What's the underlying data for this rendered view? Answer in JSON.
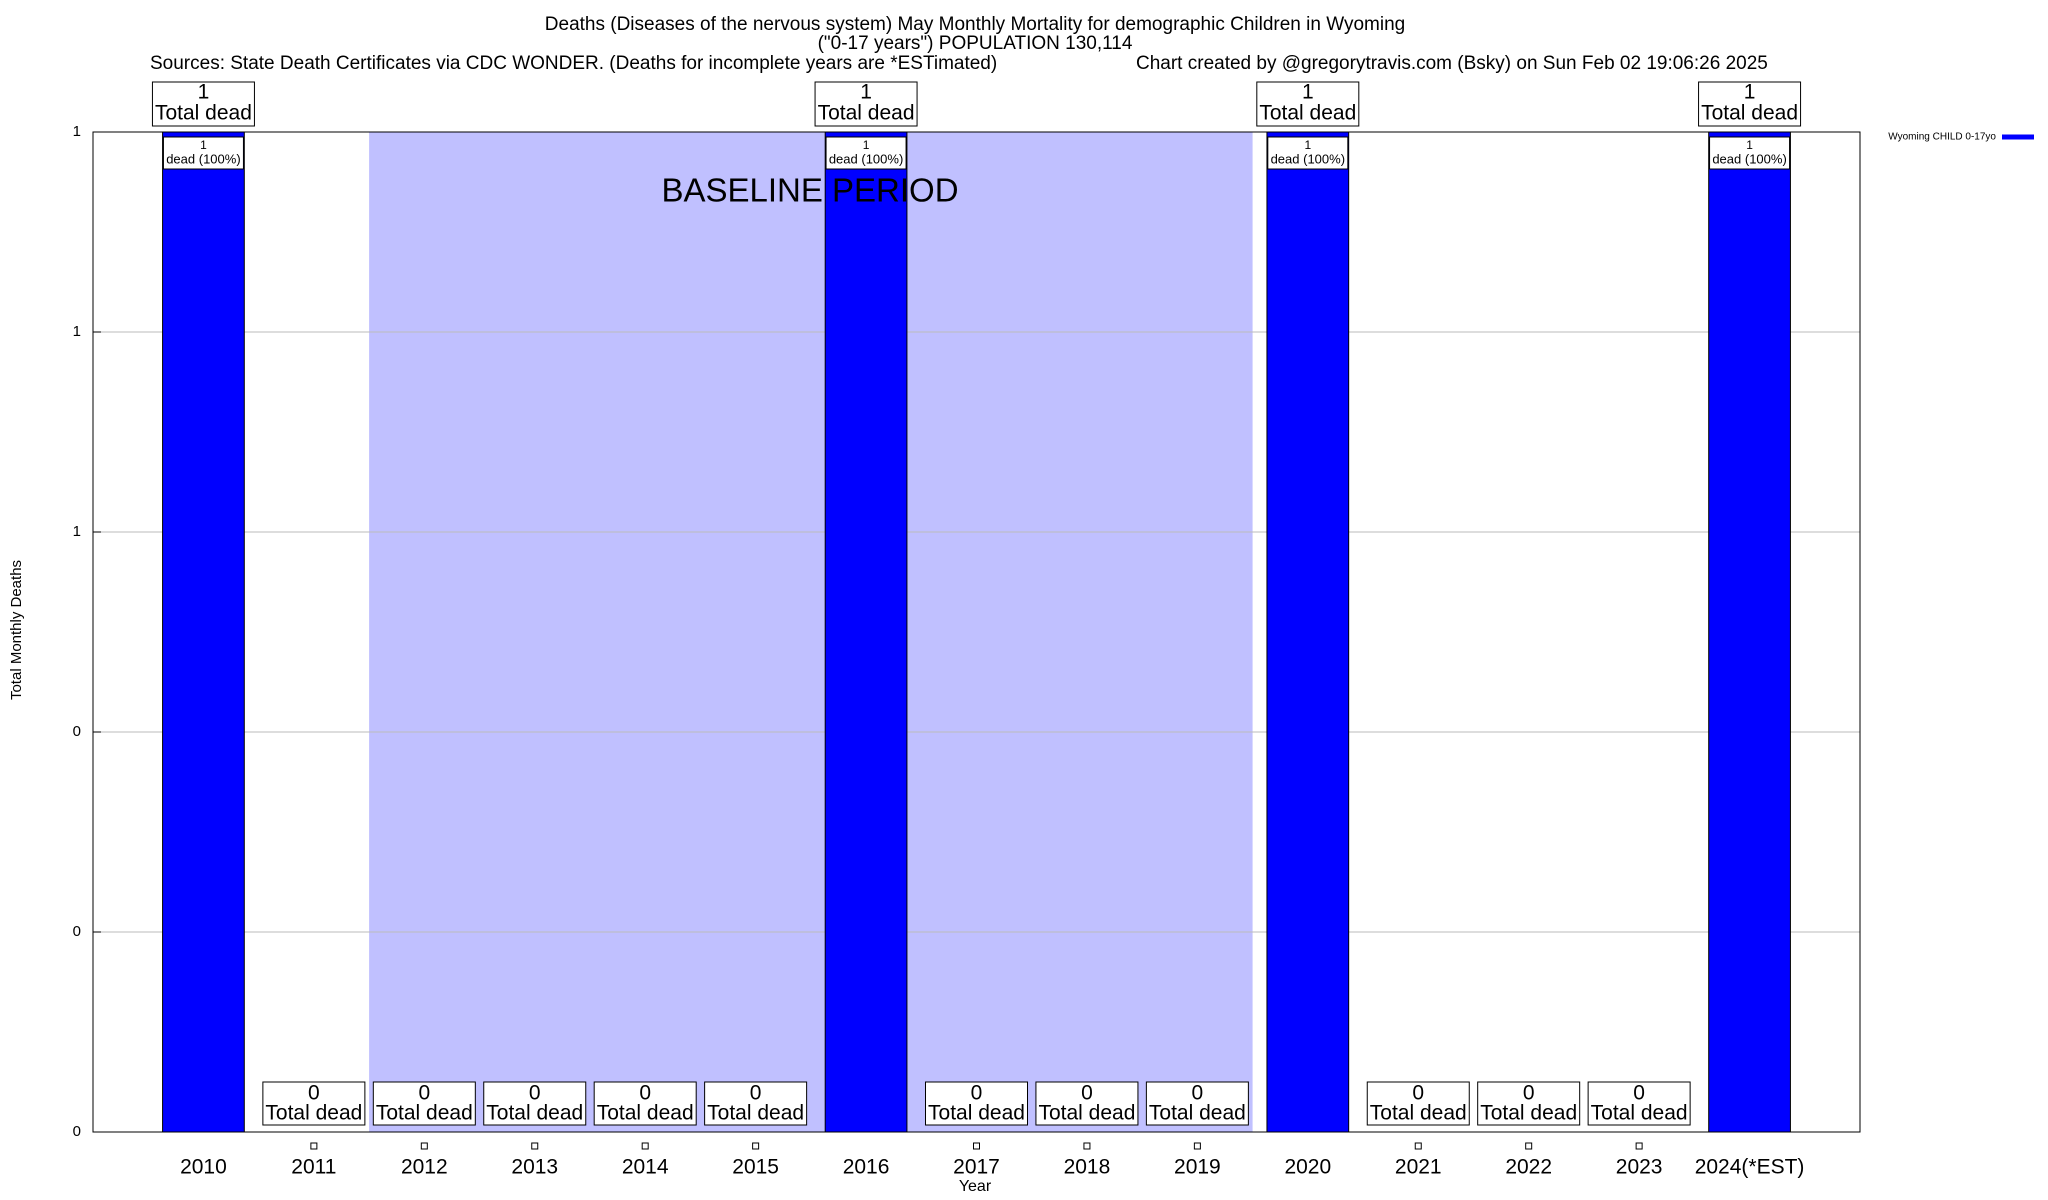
{
  "chart_data": {
    "type": "bar",
    "title": "Deaths (Diseases of the nervous system) May Monthly Mortality for demographic Children in Wyoming",
    "subtitle": "(\"0-17 years\") POPULATION 130,114",
    "source": "Sources: State Death Certificates via CDC WONDER. (Deaths for incomplete years are *ESTimated)",
    "credit": "Chart created by @gregorytravis.com (Bsky) on Sun Feb 02 19:06:26 2025",
    "x_label": "Year",
    "y_label": "Total Monthly Deaths",
    "categories": [
      "2010",
      "2011",
      "2012",
      "2013",
      "2014",
      "2015",
      "2016",
      "2017",
      "2018",
      "2019",
      "2020",
      "2021",
      "2022",
      "2023",
      "2024(*EST)"
    ],
    "series": [
      {
        "name": "Wyoming CHILD 0-17yo",
        "color": "#0000ff",
        "values": [
          1,
          0,
          0,
          0,
          0,
          0,
          1,
          0,
          0,
          0,
          1,
          0,
          0,
          0,
          1
        ],
        "share_labels": [
          "dead (100%)",
          null,
          null,
          null,
          null,
          null,
          "dead (100%)",
          null,
          null,
          null,
          "dead (100%)",
          null,
          null,
          null,
          "dead (100%)"
        ]
      }
    ],
    "total_label": "Total dead",
    "ylim": [
      0,
      1
    ],
    "yticks": [
      0,
      {
        "value": 0.2,
        "label": "0"
      },
      {
        "value": 0.4,
        "label": "0"
      },
      {
        "value": 0.6,
        "label": "1"
      },
      {
        "value": 0.8,
        "label": "1"
      },
      1
    ],
    "grid": true,
    "legend": "top-right",
    "baseline": {
      "label": "BASELINE PERIOD",
      "start": "2012",
      "end": "2019",
      "color": "#c0c0ff"
    }
  }
}
